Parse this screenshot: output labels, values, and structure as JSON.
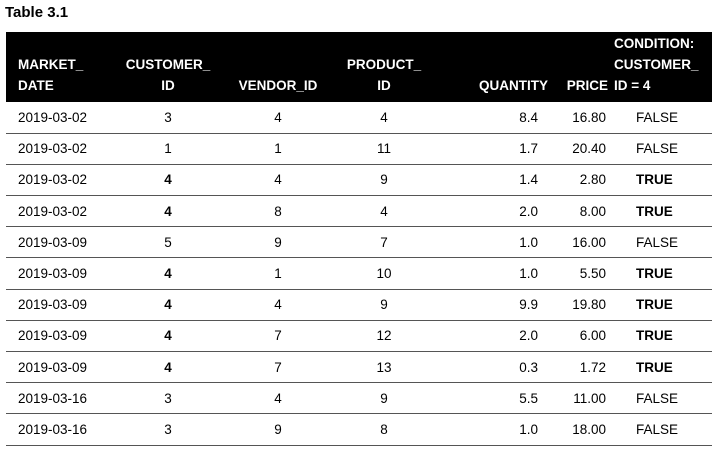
{
  "caption": "Table 3.1",
  "headers": [
    [
      "MARKET_",
      "DATE"
    ],
    [
      "CUSTOMER_",
      "ID"
    ],
    [
      "VENDOR_ID"
    ],
    [
      "PRODUCT_",
      "ID"
    ],
    [
      "QUANTITY"
    ],
    [
      "PRICE"
    ],
    [
      "CONDITION:",
      "CUSTOMER_",
      "ID = 4"
    ]
  ],
  "rows": [
    [
      "2019-03-02",
      "3",
      "4",
      "4",
      "8.4",
      "16.80",
      "FALSE"
    ],
    [
      "2019-03-02",
      "1",
      "1",
      "11",
      "1.7",
      "20.40",
      "FALSE"
    ],
    [
      "2019-03-02",
      "4",
      "4",
      "9",
      "1.4",
      "2.80",
      "TRUE"
    ],
    [
      "2019-03-02",
      "4",
      "8",
      "4",
      "2.0",
      "8.00",
      "TRUE"
    ],
    [
      "2019-03-09",
      "5",
      "9",
      "7",
      "1.0",
      "16.00",
      "FALSE"
    ],
    [
      "2019-03-09",
      "4",
      "1",
      "10",
      "1.0",
      "5.50",
      "TRUE"
    ],
    [
      "2019-03-09",
      "4",
      "4",
      "9",
      "9.9",
      "19.80",
      "TRUE"
    ],
    [
      "2019-03-09",
      "4",
      "7",
      "12",
      "2.0",
      "6.00",
      "TRUE"
    ],
    [
      "2019-03-09",
      "4",
      "7",
      "13",
      "0.3",
      "1.72",
      "TRUE"
    ],
    [
      "2019-03-16",
      "3",
      "4",
      "9",
      "5.5",
      "11.00",
      "FALSE"
    ],
    [
      "2019-03-16",
      "3",
      "9",
      "8",
      "1.0",
      "18.00",
      "FALSE"
    ]
  ],
  "colors": {
    "header_bg": "#000000",
    "header_text": "#ffffff",
    "row_divider": "#555555"
  }
}
